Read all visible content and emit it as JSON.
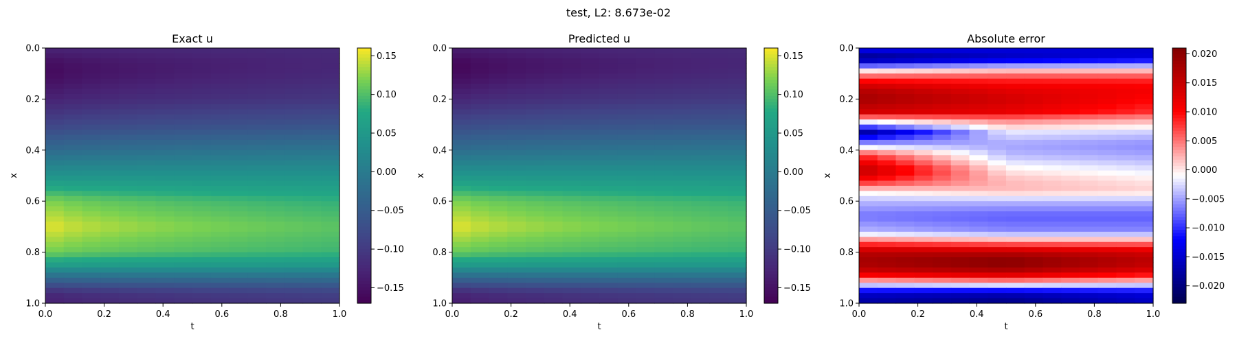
{
  "figure": {
    "title": "test, L2: 8.673e-02"
  },
  "chart_data": [
    {
      "type": "heatmap",
      "title": "Exact u",
      "xlabel": "t",
      "ylabel": "x",
      "xlim": [
        0.0,
        1.0
      ],
      "ylim": [
        1.0,
        0.0
      ],
      "x_ticks": [
        "0.0",
        "0.2",
        "0.4",
        "0.6",
        "0.8",
        "1.0"
      ],
      "y_ticks": [
        "0.0",
        "0.2",
        "0.4",
        "0.6",
        "0.8",
        "1.0"
      ],
      "colormap": "viridis",
      "colorbar": {
        "range": [
          -0.17,
          0.16
        ],
        "ticks": [
          "−0.15",
          "−0.10",
          "−0.05",
          "0.00",
          "0.05",
          "0.10",
          "0.15"
        ]
      },
      "profile": {
        "x": [
          0.0,
          0.05,
          0.08,
          0.12,
          0.2,
          0.3,
          0.4,
          0.5,
          0.6,
          0.7,
          0.8,
          0.85,
          0.9,
          0.95,
          0.98,
          1.0
        ],
        "u_t0": [
          -0.13,
          -0.155,
          -0.165,
          -0.16,
          -0.135,
          -0.09,
          -0.03,
          0.04,
          0.125,
          0.16,
          0.12,
          0.06,
          -0.03,
          -0.11,
          -0.14,
          -0.13
        ],
        "u_t1": [
          -0.12,
          -0.125,
          -0.125,
          -0.12,
          -0.105,
          -0.065,
          -0.01,
          0.04,
          0.085,
          0.105,
          0.09,
          0.05,
          -0.02,
          -0.08,
          -0.1,
          -0.1
        ]
      }
    },
    {
      "type": "heatmap",
      "title": "Predicted u",
      "xlabel": "t",
      "ylabel": "x",
      "xlim": [
        0.0,
        1.0
      ],
      "ylim": [
        1.0,
        0.0
      ],
      "x_ticks": [
        "0.0",
        "0.2",
        "0.4",
        "0.6",
        "0.8",
        "1.0"
      ],
      "y_ticks": [
        "0.0",
        "0.2",
        "0.4",
        "0.6",
        "0.8",
        "1.0"
      ],
      "colormap": "viridis",
      "colorbar": {
        "range": [
          -0.17,
          0.16
        ],
        "ticks": [
          "−0.15",
          "−0.10",
          "−0.05",
          "0.00",
          "0.05",
          "0.10",
          "0.15"
        ]
      },
      "profile": {
        "x": [
          0.0,
          0.05,
          0.08,
          0.12,
          0.2,
          0.3,
          0.4,
          0.5,
          0.6,
          0.7,
          0.8,
          0.85,
          0.9,
          0.95,
          0.98,
          1.0
        ],
        "u_t0": [
          -0.14,
          -0.165,
          -0.17,
          -0.16,
          -0.13,
          -0.08,
          -0.025,
          0.045,
          0.125,
          0.16,
          0.115,
          0.055,
          -0.035,
          -0.115,
          -0.145,
          -0.135
        ],
        "u_t1": [
          -0.12,
          -0.125,
          -0.125,
          -0.118,
          -0.1,
          -0.06,
          -0.008,
          0.042,
          0.088,
          0.105,
          0.088,
          0.048,
          -0.022,
          -0.082,
          -0.102,
          -0.1
        ]
      }
    },
    {
      "type": "heatmap",
      "title": "Absolute error",
      "xlabel": "t",
      "ylabel": "x",
      "xlim": [
        0.0,
        1.0
      ],
      "ylim": [
        1.0,
        0.0
      ],
      "x_ticks": [
        "0.0",
        "0.2",
        "0.4",
        "0.6",
        "0.8",
        "1.0"
      ],
      "y_ticks": [
        "0.0",
        "0.2",
        "0.4",
        "0.6",
        "0.8",
        "1.0"
      ],
      "colormap": "seismic",
      "colorbar": {
        "range": [
          -0.023,
          0.021
        ],
        "ticks": [
          "−0.020",
          "−0.015",
          "−0.010",
          "−0.005",
          "0.000",
          "0.005",
          "0.010",
          "0.015",
          "0.020"
        ]
      },
      "profile": {
        "x": [
          0.0,
          0.04,
          0.09,
          0.12,
          0.16,
          0.2,
          0.25,
          0.28,
          0.33,
          0.38,
          0.42,
          0.48,
          0.52,
          0.56,
          0.6,
          0.66,
          0.72,
          0.76,
          0.8,
          0.84,
          0.88,
          0.92,
          0.96,
          1.0
        ],
        "err_t0": [
          -0.012,
          -0.02,
          0.0,
          0.008,
          0.016,
          0.018,
          0.014,
          0.002,
          -0.018,
          -0.004,
          0.008,
          0.016,
          0.01,
          0.0,
          -0.004,
          -0.007,
          -0.004,
          0.006,
          0.016,
          0.018,
          0.014,
          0.0,
          -0.015,
          -0.018
        ],
        "err_t05": [
          -0.014,
          -0.016,
          0.002,
          0.008,
          0.012,
          0.014,
          0.012,
          0.005,
          -0.002,
          -0.005,
          -0.004,
          0.0,
          0.002,
          0.002,
          -0.004,
          -0.008,
          -0.006,
          0.004,
          0.016,
          0.021,
          0.016,
          0.002,
          -0.016,
          -0.02
        ],
        "err_t1": [
          -0.015,
          -0.014,
          0.002,
          0.008,
          0.011,
          0.01,
          0.008,
          0.003,
          -0.003,
          -0.006,
          -0.005,
          -0.002,
          0.0,
          0.001,
          -0.004,
          -0.008,
          -0.006,
          0.004,
          0.014,
          0.016,
          0.012,
          0.0,
          -0.014,
          -0.016
        ]
      }
    }
  ]
}
